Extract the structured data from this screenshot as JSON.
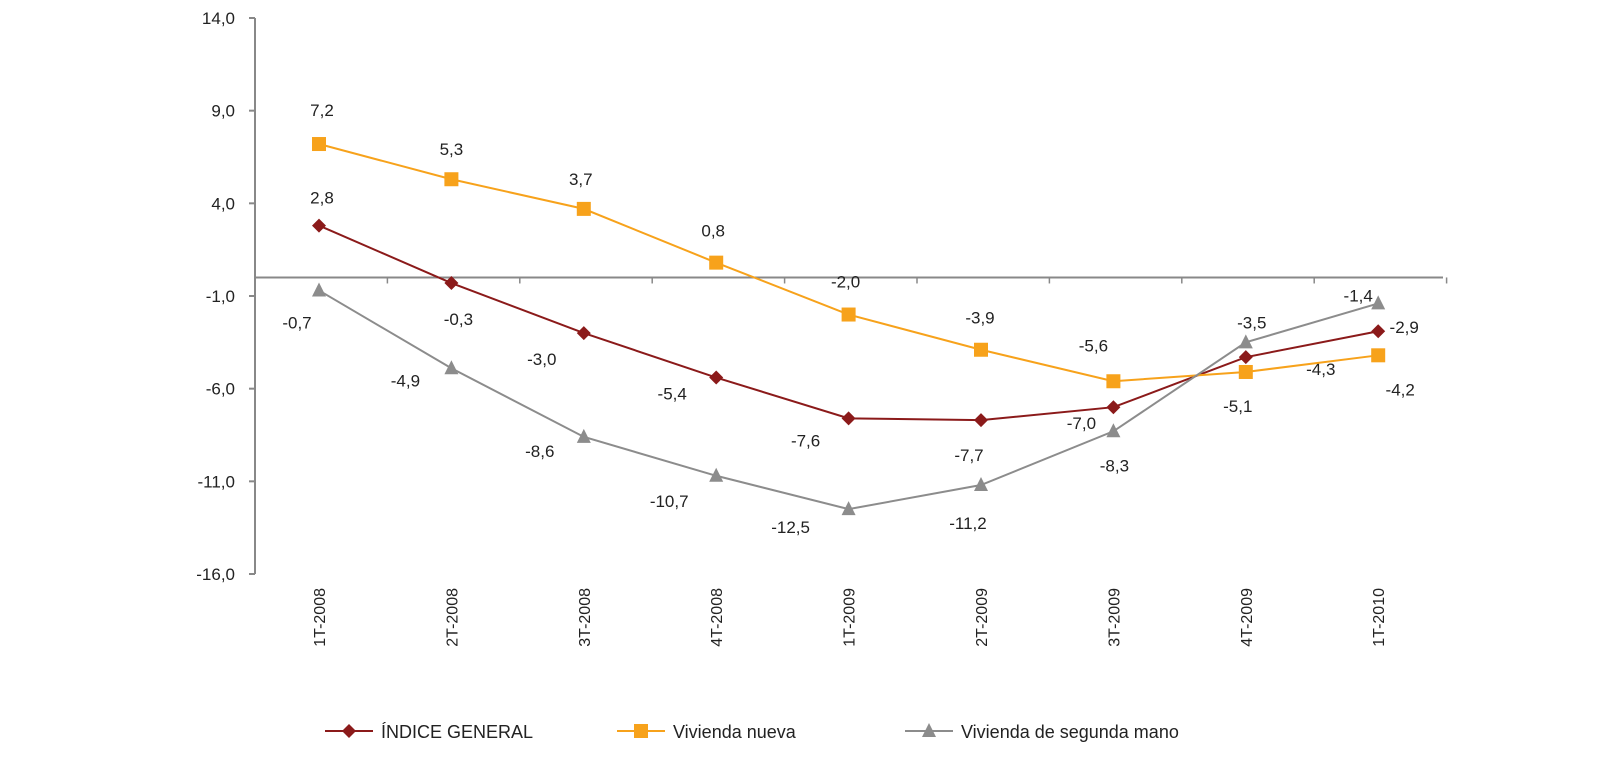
{
  "chart_data": {
    "type": "line",
    "categories": [
      "1T-2008",
      "2T-2008",
      "3T-2008",
      "4T-2008",
      "1T-2009",
      "2T-2009",
      "3T-2009",
      "4T-2009",
      "1T-2010"
    ],
    "ylim": [
      -16,
      14
    ],
    "yticks": [
      14,
      9,
      4,
      -1,
      -6,
      -11,
      -16
    ],
    "ytick_labels": [
      "14,0",
      "9,0",
      "4,0",
      "-1,0",
      "-6,0",
      "-11,0",
      "-16,0"
    ],
    "grid": false,
    "legend": "bottom",
    "series": [
      {
        "name": "ÍNDICE GENERAL",
        "color": "#8b1a1a",
        "marker": "diamond",
        "values": [
          2.8,
          -0.3,
          -3.0,
          -5.4,
          -7.6,
          -7.7,
          -7.0,
          -4.3,
          -2.9
        ],
        "labels": [
          "2,8",
          "-0,3",
          "-3,0",
          "-5,4",
          "-7,6",
          "-7,7",
          "-7,0",
          "-4,3",
          "-2,9"
        ]
      },
      {
        "name": "Vivienda nueva",
        "color": "#f7a21b",
        "marker": "square",
        "values": [
          7.2,
          5.3,
          3.7,
          0.8,
          -2.0,
          -3.9,
          -5.6,
          -5.1,
          -4.2
        ],
        "labels": [
          "7,2",
          "5,3",
          "3,7",
          "0,8",
          "-2,0",
          "-3,9",
          "-5,6",
          "-5,1",
          "-4,2"
        ]
      },
      {
        "name": "Vivienda de segunda mano",
        "color": "#8c8c8c",
        "marker": "triangle",
        "values": [
          -0.7,
          -4.9,
          -8.6,
          -10.7,
          -12.5,
          -11.2,
          -8.3,
          -3.5,
          -1.4
        ],
        "labels": [
          "-0,7",
          "-4,9",
          "-8,6",
          "-10,7",
          "-12,5",
          "-11,2",
          "-8,3",
          "-3,5",
          "-1,4"
        ]
      }
    ]
  }
}
